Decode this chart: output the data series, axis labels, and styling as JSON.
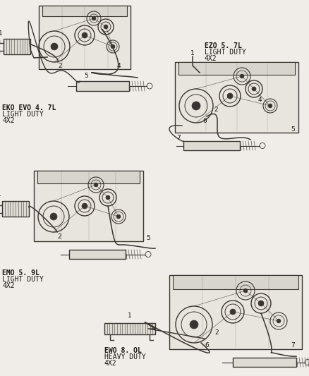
{
  "bg_color": "#f0ede8",
  "line_color": "#3a3530",
  "text_color": "#1a1510",
  "figsize": [
    4.38,
    5.33
  ],
  "dpi": 100,
  "labels": {
    "top_left_title": "EKO EVO 4. 7L",
    "top_left_sub1": "LIGHT DUTY",
    "top_left_sub2": "4X2",
    "top_right_title": "EZO 5. 7L",
    "top_right_sub1": "LIGHT DUTY",
    "top_right_sub2": "4X2",
    "mid_left_title": "EMO 5. 9L",
    "mid_left_sub1": "LIGHT DUTY",
    "mid_left_sub2": "4X2",
    "bot_title": "EWO 8. OL",
    "bot_sub1": "HEAVY DUTY",
    "bot_sub2": "4X2"
  },
  "fontsize_label": 7.0,
  "fontsize_num": 6.5,
  "lw_main": 1.0,
  "lw_thick": 1.5,
  "lw_thin": 0.6
}
